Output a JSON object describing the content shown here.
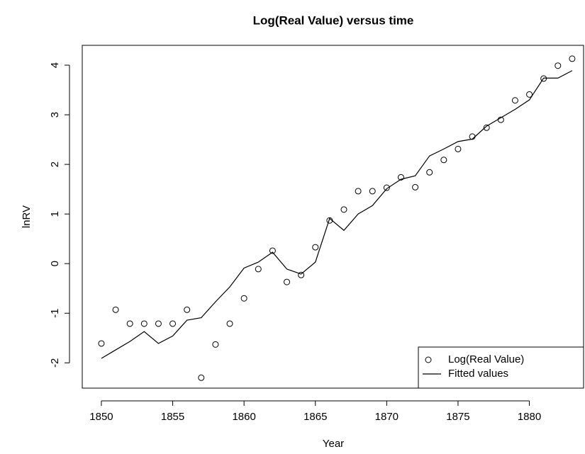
{
  "chart_data": {
    "type": "line",
    "title": "Log(Real Value) versus time",
    "x_label": "Year",
    "y_label": "lnRV",
    "x": [
      1850,
      1851,
      1852,
      1853,
      1854,
      1855,
      1856,
      1857,
      1858,
      1859,
      1860,
      1861,
      1862,
      1863,
      1864,
      1865,
      1866,
      1867,
      1868,
      1869,
      1870,
      1871,
      1872,
      1873,
      1874,
      1875,
      1876,
      1877,
      1878,
      1879,
      1880,
      1881,
      1882,
      1883
    ],
    "series": [
      {
        "name": "Log(Real Value)",
        "color": "#000000",
        "mode": "markers",
        "values": [
          -1.61,
          -0.93,
          -1.21,
          -1.21,
          -1.21,
          -1.21,
          -0.93,
          -2.3,
          -1.63,
          -1.21,
          -0.7,
          -0.11,
          0.26,
          -0.37,
          -0.23,
          0.33,
          0.87,
          1.09,
          1.46,
          1.46,
          1.53,
          1.74,
          1.54,
          1.84,
          2.09,
          2.31,
          2.56,
          2.74,
          2.9,
          3.29,
          3.41,
          3.73,
          3.99,
          4.13
        ]
      },
      {
        "name": "Fitted values",
        "color": "#000000",
        "mode": "lines",
        "values": [
          -1.91,
          -1.74,
          -1.57,
          -1.37,
          -1.61,
          -1.46,
          -1.14,
          -1.09,
          -0.77,
          -0.47,
          -0.09,
          0.03,
          0.23,
          -0.11,
          -0.21,
          0.03,
          0.91,
          0.67,
          1.0,
          1.17,
          1.51,
          1.7,
          1.77,
          2.17,
          2.31,
          2.46,
          2.51,
          2.77,
          2.94,
          3.11,
          3.3,
          3.74,
          3.74,
          3.89
        ]
      }
    ],
    "xlim": [
      1848.66,
      1883.8
    ],
    "xticks": [
      1850,
      1855,
      1860,
      1865,
      1870,
      1875,
      1880
    ],
    "ylim": [
      -2.51,
      4.4
    ],
    "yticks": [
      -2,
      -1,
      0,
      1,
      2,
      3,
      4
    ],
    "grid": false,
    "legend": "bottom-right"
  }
}
